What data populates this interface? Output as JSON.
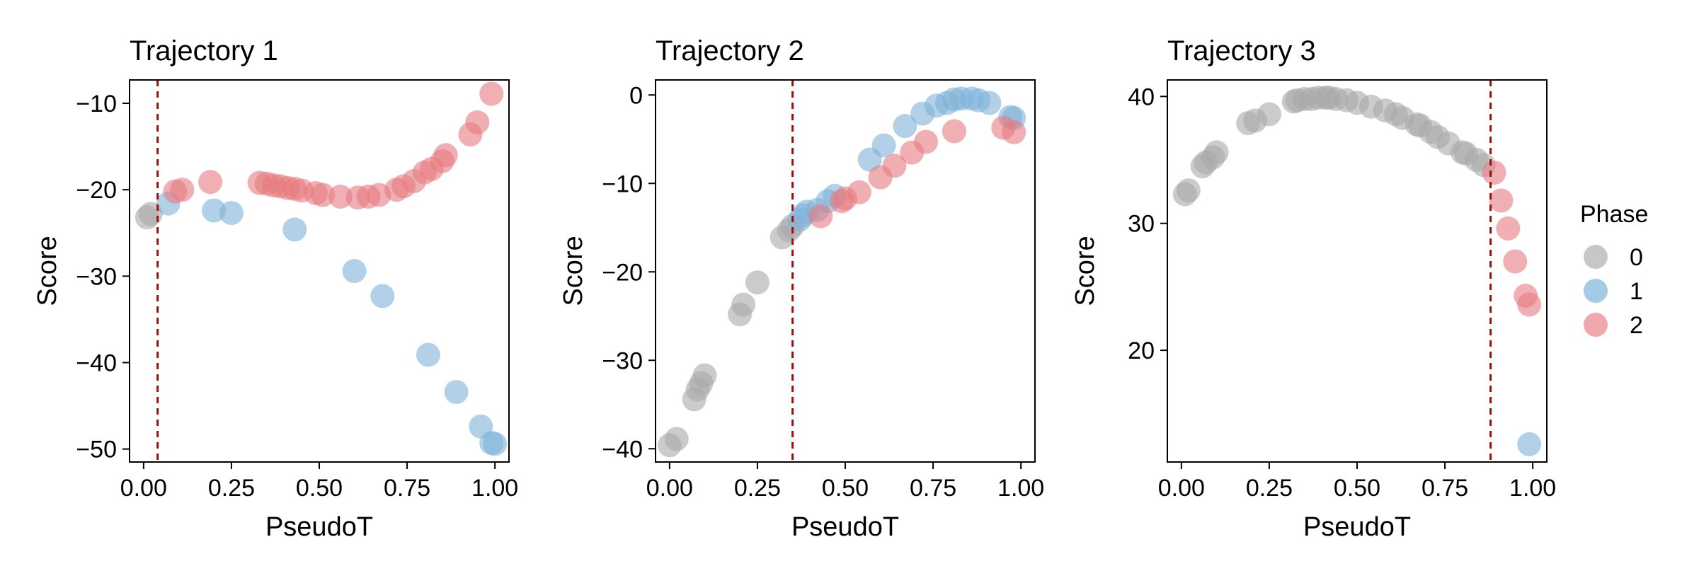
{
  "chart_data": [
    {
      "type": "scatter",
      "title": "Trajectory 1",
      "xlabel": "PseudoT",
      "ylabel": "Score",
      "xlim": [
        -0.04,
        1.04
      ],
      "ylim": [
        -51.5,
        -7.3
      ],
      "xticks": [
        0,
        0.25,
        0.5,
        0.75,
        1
      ],
      "xtick_labels": [
        "0.00",
        "0.25",
        "0.50",
        "0.75",
        "1.00"
      ],
      "yticks": [
        -50,
        -40,
        -30,
        -20,
        -10
      ],
      "ytick_labels": [
        "−50",
        "−40",
        "−30",
        "−20",
        "−10"
      ],
      "vline": 0.04,
      "grid": false,
      "series": [
        {
          "name": "0",
          "points": [
            [
              0.01,
              -23.2
            ],
            [
              0.02,
              -22.8
            ]
          ]
        },
        {
          "name": "1",
          "points": [
            [
              0.07,
              -21.6
            ],
            [
              0.2,
              -22.4
            ],
            [
              0.25,
              -22.7
            ],
            [
              0.43,
              -24.6
            ],
            [
              0.6,
              -29.4
            ],
            [
              0.68,
              -32.3
            ],
            [
              0.81,
              -39.1
            ],
            [
              0.89,
              -43.4
            ],
            [
              0.96,
              -47.4
            ],
            [
              0.99,
              -49.3
            ],
            [
              1.0,
              -49.4
            ]
          ]
        },
        {
          "name": "2",
          "points": [
            [
              0.09,
              -20.2
            ],
            [
              0.11,
              -20.0
            ],
            [
              0.19,
              -19.1
            ],
            [
              0.33,
              -19.2
            ],
            [
              0.35,
              -19.3
            ],
            [
              0.37,
              -19.5
            ],
            [
              0.39,
              -19.6
            ],
            [
              0.41,
              -19.8
            ],
            [
              0.43,
              -19.9
            ],
            [
              0.45,
              -20.1
            ],
            [
              0.49,
              -20.4
            ],
            [
              0.51,
              -20.6
            ],
            [
              0.56,
              -20.8
            ],
            [
              0.61,
              -20.9
            ],
            [
              0.64,
              -20.8
            ],
            [
              0.67,
              -20.6
            ],
            [
              0.72,
              -20.0
            ],
            [
              0.74,
              -19.6
            ],
            [
              0.77,
              -19.0
            ],
            [
              0.8,
              -18.0
            ],
            [
              0.82,
              -17.6
            ],
            [
              0.85,
              -16.7
            ],
            [
              0.86,
              -16.0
            ],
            [
              0.93,
              -13.6
            ],
            [
              0.95,
              -12.2
            ],
            [
              0.99,
              -8.9
            ]
          ]
        }
      ]
    },
    {
      "type": "scatter",
      "title": "Trajectory 2",
      "xlabel": "PseudoT",
      "ylabel": "Score",
      "xlim": [
        -0.04,
        1.04
      ],
      "ylim": [
        -41.5,
        1.7
      ],
      "xticks": [
        0,
        0.25,
        0.5,
        0.75,
        1
      ],
      "xtick_labels": [
        "0.00",
        "0.25",
        "0.50",
        "0.75",
        "1.00"
      ],
      "yticks": [
        -40,
        -30,
        -20,
        -10,
        0
      ],
      "ytick_labels": [
        "−40",
        "−30",
        "−20",
        "−10",
        "0"
      ],
      "vline": 0.35,
      "grid": false,
      "series": [
        {
          "name": "0",
          "points": [
            [
              0.0,
              -39.6
            ],
            [
              0.02,
              -38.9
            ],
            [
              0.07,
              -34.4
            ],
            [
              0.08,
              -33.3
            ],
            [
              0.09,
              -32.6
            ],
            [
              0.1,
              -31.7
            ],
            [
              0.2,
              -24.8
            ],
            [
              0.21,
              -23.7
            ],
            [
              0.25,
              -21.2
            ],
            [
              0.32,
              -16.1
            ],
            [
              0.34,
              -15.3
            ],
            [
              0.35,
              -14.8
            ]
          ]
        },
        {
          "name": "1",
          "points": [
            [
              0.37,
              -14.1
            ],
            [
              0.38,
              -13.6
            ],
            [
              0.39,
              -13.2
            ],
            [
              0.42,
              -13.0
            ],
            [
              0.45,
              -12.0
            ],
            [
              0.47,
              -11.4
            ],
            [
              0.57,
              -7.3
            ],
            [
              0.61,
              -5.7
            ],
            [
              0.67,
              -3.5
            ],
            [
              0.72,
              -2.1
            ],
            [
              0.76,
              -1.2
            ],
            [
              0.79,
              -0.9
            ],
            [
              0.81,
              -0.5
            ],
            [
              0.83,
              -0.4
            ],
            [
              0.86,
              -0.4
            ],
            [
              0.88,
              -0.6
            ],
            [
              0.91,
              -0.9
            ],
            [
              0.97,
              -2.5
            ],
            [
              0.98,
              -2.6
            ]
          ]
        },
        {
          "name": "2",
          "points": [
            [
              0.43,
              -13.7
            ],
            [
              0.49,
              -12.0
            ],
            [
              0.5,
              -11.7
            ],
            [
              0.54,
              -11.0
            ],
            [
              0.6,
              -9.3
            ],
            [
              0.64,
              -8.0
            ],
            [
              0.69,
              -6.5
            ],
            [
              0.73,
              -5.3
            ],
            [
              0.81,
              -4.1
            ],
            [
              0.95,
              -3.7
            ],
            [
              0.98,
              -4.2
            ]
          ]
        }
      ]
    },
    {
      "type": "scatter",
      "title": "Trajectory 3",
      "xlabel": "PseudoT",
      "ylabel": "Score",
      "xlim": [
        -0.04,
        1.04
      ],
      "ylim": [
        11.2,
        41.3
      ],
      "xticks": [
        0,
        0.25,
        0.5,
        0.75,
        1
      ],
      "xtick_labels": [
        "0.00",
        "0.25",
        "0.50",
        "0.75",
        "1.00"
      ],
      "yticks": [
        20,
        30,
        40
      ],
      "ytick_labels": [
        "20",
        "30",
        "40"
      ],
      "vline": 0.88,
      "grid": false,
      "series": [
        {
          "name": "0",
          "points": [
            [
              0.01,
              32.3
            ],
            [
              0.02,
              32.6
            ],
            [
              0.06,
              34.5
            ],
            [
              0.07,
              34.8
            ],
            [
              0.09,
              35.2
            ],
            [
              0.1,
              35.6
            ],
            [
              0.19,
              37.9
            ],
            [
              0.21,
              38.1
            ],
            [
              0.25,
              38.6
            ],
            [
              0.32,
              39.6
            ],
            [
              0.33,
              39.7
            ],
            [
              0.35,
              39.8
            ],
            [
              0.37,
              39.8
            ],
            [
              0.39,
              39.9
            ],
            [
              0.41,
              39.9
            ],
            [
              0.42,
              39.9
            ],
            [
              0.44,
              39.8
            ],
            [
              0.47,
              39.7
            ],
            [
              0.5,
              39.5
            ],
            [
              0.54,
              39.2
            ],
            [
              0.58,
              38.9
            ],
            [
              0.61,
              38.6
            ],
            [
              0.63,
              38.3
            ],
            [
              0.67,
              37.8
            ],
            [
              0.68,
              37.7
            ],
            [
              0.71,
              37.2
            ],
            [
              0.73,
              36.8
            ],
            [
              0.76,
              36.3
            ],
            [
              0.8,
              35.6
            ],
            [
              0.81,
              35.5
            ],
            [
              0.84,
              35.0
            ],
            [
              0.86,
              34.6
            ]
          ]
        },
        {
          "name": "1",
          "points": [
            [
              0.99,
              12.6
            ]
          ]
        },
        {
          "name": "2",
          "points": [
            [
              0.89,
              34.0
            ],
            [
              0.91,
              31.8
            ],
            [
              0.93,
              29.6
            ],
            [
              0.95,
              27.0
            ],
            [
              0.98,
              24.3
            ],
            [
              0.99,
              23.6
            ]
          ]
        }
      ]
    }
  ],
  "legend": {
    "title": "Phase",
    "placement": "right",
    "items": [
      {
        "label": "0",
        "color": "#b4b4b4"
      },
      {
        "label": "1",
        "color": "#86b9dc"
      },
      {
        "label": "2",
        "color": "#ea8c90"
      }
    ]
  },
  "colors": {
    "phase_0": "#a9a9a9",
    "phase_1": "#7fb3d8",
    "phase_2": "#e6797e",
    "vline": "#9b0f0f"
  }
}
